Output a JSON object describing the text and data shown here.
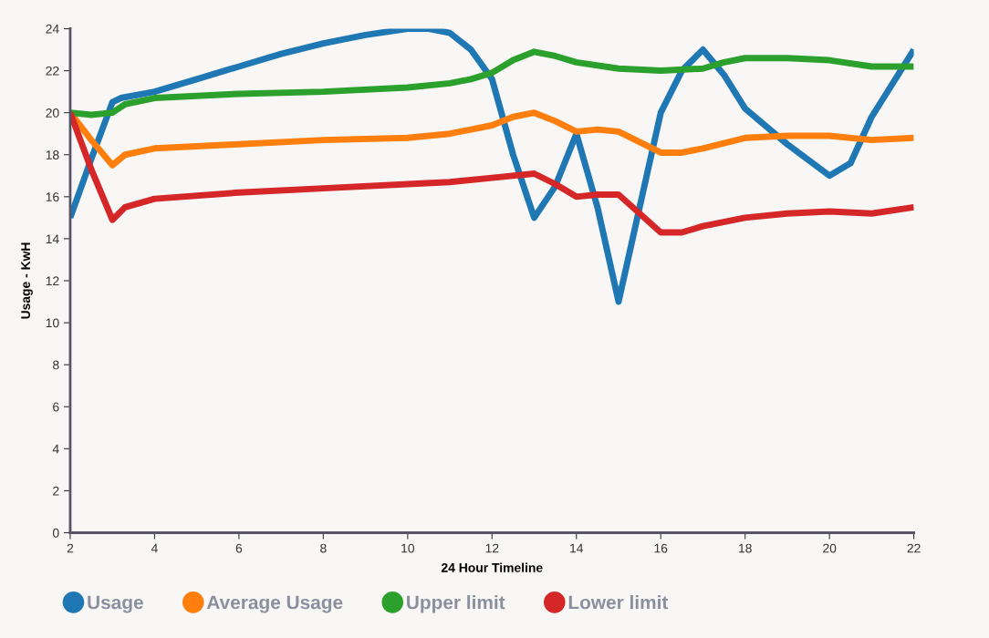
{
  "chart_data": {
    "type": "line",
    "xlabel": "24 Hour Timeline",
    "ylabel": "Usage - KwH",
    "xlim": [
      2,
      22
    ],
    "xticks": [
      2,
      4,
      6,
      8,
      10,
      12,
      14,
      16,
      18,
      20,
      22
    ],
    "ylim": [
      0,
      24
    ],
    "yticks": [
      0,
      2,
      4,
      6,
      8,
      10,
      12,
      14,
      16,
      18,
      20,
      22,
      24
    ],
    "grid": false,
    "legend": "bottom left",
    "marker": "none",
    "line_style": "solid",
    "series": [
      {
        "name": "Usage",
        "color": "#1f77b4",
        "x": [
          2,
          2.5,
          3,
          3.2,
          4,
          5,
          6,
          7,
          8,
          9,
          10,
          10.5,
          11,
          11.5,
          12,
          12.5,
          13,
          13.5,
          14,
          14.5,
          15,
          15.5,
          16,
          16.5,
          17,
          17.5,
          18,
          19,
          20,
          20.5,
          21,
          22
        ],
        "values": [
          15,
          17.8,
          20.5,
          20.7,
          21,
          21.6,
          22.2,
          22.8,
          23.3,
          23.7,
          24,
          24,
          23.8,
          23,
          21.6,
          18,
          15,
          16.5,
          19,
          15.5,
          11,
          15.5,
          20,
          22,
          23,
          21.8,
          20.2,
          18.5,
          17,
          17.6,
          19.8,
          23
        ]
      },
      {
        "name": "Average Usage",
        "color": "#ff7f0e",
        "x": [
          2,
          2.5,
          3,
          3.3,
          4,
          6,
          8,
          10,
          11,
          12,
          12.5,
          13,
          13.5,
          14,
          14.5,
          15,
          15.5,
          16,
          16.5,
          17,
          18,
          19,
          20,
          21,
          22
        ],
        "values": [
          20,
          18.7,
          17.5,
          18,
          18.3,
          18.5,
          18.7,
          18.8,
          19,
          19.4,
          19.8,
          20,
          19.6,
          19.1,
          19.2,
          19.1,
          18.6,
          18.1,
          18.1,
          18.3,
          18.8,
          18.9,
          18.9,
          18.7,
          18.8
        ]
      },
      {
        "name": "Upper limit",
        "color": "#2ca02c",
        "x": [
          2,
          2.5,
          3,
          3.3,
          4,
          6,
          8,
          10,
          11,
          11.5,
          12,
          12.5,
          13,
          13.5,
          14,
          15,
          16,
          17,
          17.5,
          18,
          19,
          20,
          21,
          22
        ],
        "values": [
          20,
          19.9,
          20,
          20.4,
          20.7,
          20.9,
          21,
          21.2,
          21.4,
          21.6,
          21.9,
          22.5,
          22.9,
          22.7,
          22.4,
          22.1,
          22,
          22.1,
          22.4,
          22.6,
          22.6,
          22.5,
          22.2,
          22.2
        ]
      },
      {
        "name": "Lower limit",
        "color": "#d62728",
        "x": [
          2,
          2.5,
          3,
          3.3,
          4,
          6,
          8,
          10,
          11,
          12,
          13,
          13.5,
          14,
          14.5,
          15,
          15.5,
          16,
          16.5,
          17,
          18,
          19,
          20,
          21,
          22
        ],
        "values": [
          20,
          17.3,
          14.9,
          15.5,
          15.9,
          16.2,
          16.4,
          16.6,
          16.7,
          16.9,
          17.1,
          16.6,
          16,
          16.1,
          16.1,
          15.2,
          14.3,
          14.3,
          14.6,
          15,
          15.2,
          15.3,
          15.2,
          15.5
        ]
      }
    ]
  }
}
